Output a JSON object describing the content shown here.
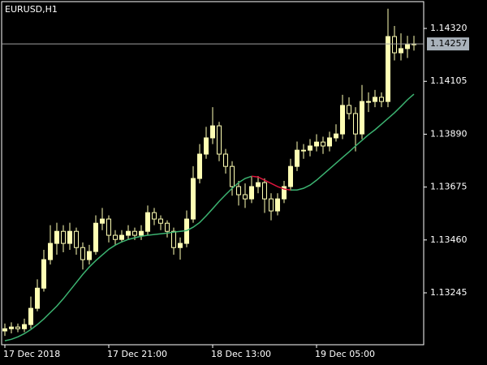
{
  "chart_data": {
    "type": "candlestick",
    "title": "EURUSD,H1",
    "categories": [
      "17 Dec 2018",
      null,
      null,
      null,
      null,
      null,
      null,
      null,
      null,
      null,
      null,
      null,
      null,
      null,
      null,
      null,
      "17 Dec 21:00",
      null,
      null,
      null,
      null,
      null,
      null,
      null,
      null,
      null,
      null,
      null,
      null,
      null,
      null,
      null,
      "18 Dec 13:00",
      null,
      null,
      null,
      null,
      null,
      null,
      null,
      null,
      null,
      null,
      null,
      null,
      null,
      null,
      null,
      "19 Dec 05:00",
      null,
      null,
      null,
      null,
      null,
      null,
      null,
      null,
      null,
      null,
      null,
      null,
      null,
      null,
      null
    ],
    "ohlc": [
      [
        1.1309,
        1.1312,
        1.1307,
        1.13099
      ],
      [
        1.13099,
        1.13125,
        1.1308,
        1.13106
      ],
      [
        1.13106,
        1.1312,
        1.13085,
        1.13099
      ],
      [
        1.13099,
        1.1314,
        1.13085,
        1.13116
      ],
      [
        1.13116,
        1.1323,
        1.131,
        1.13182
      ],
      [
        1.13182,
        1.133,
        1.1317,
        1.13264
      ],
      [
        1.13264,
        1.1342,
        1.1325,
        1.1338
      ],
      [
        1.1338,
        1.1352,
        1.1336,
        1.13446
      ],
      [
        1.13446,
        1.1353,
        1.134,
        1.13495
      ],
      [
        1.13495,
        1.1352,
        1.1341,
        1.13446
      ],
      [
        1.13446,
        1.1353,
        1.1342,
        1.13495
      ],
      [
        1.13495,
        1.1351,
        1.134,
        1.13429
      ],
      [
        1.13429,
        1.1345,
        1.1334,
        1.1338
      ],
      [
        1.1338,
        1.1344,
        1.1336,
        1.13413
      ],
      [
        1.13413,
        1.1356,
        1.134,
        1.13528
      ],
      [
        1.13528,
        1.1359,
        1.135,
        1.13545
      ],
      [
        1.13545,
        1.1356,
        1.1345,
        1.13479
      ],
      [
        1.13479,
        1.135,
        1.1344,
        1.13462
      ],
      [
        1.13462,
        1.135,
        1.1345,
        1.13479
      ],
      [
        1.13479,
        1.1352,
        1.1346,
        1.13495
      ],
      [
        1.13495,
        1.1351,
        1.1346,
        1.13479
      ],
      [
        1.13479,
        1.1352,
        1.1346,
        1.13495
      ],
      [
        1.13495,
        1.136,
        1.1348,
        1.13571
      ],
      [
        1.13571,
        1.1359,
        1.1352,
        1.13545
      ],
      [
        1.13545,
        1.1356,
        1.135,
        1.13528
      ],
      [
        1.13528,
        1.1354,
        1.1347,
        1.13495
      ],
      [
        1.13495,
        1.1351,
        1.134,
        1.13429
      ],
      [
        1.13429,
        1.1347,
        1.1338,
        1.13446
      ],
      [
        1.13446,
        1.1358,
        1.1343,
        1.13545
      ],
      [
        1.13545,
        1.1376,
        1.1353,
        1.1371
      ],
      [
        1.1371,
        1.1385,
        1.1369,
        1.13809
      ],
      [
        1.13809,
        1.1392,
        1.1379,
        1.13875
      ],
      [
        1.13875,
        1.14,
        1.1385,
        1.13924
      ],
      [
        1.13924,
        1.1394,
        1.1378,
        1.13809
      ],
      [
        1.13809,
        1.1383,
        1.1373,
        1.13759
      ],
      [
        1.13759,
        1.1378,
        1.1364,
        1.13677
      ],
      [
        1.13677,
        1.137,
        1.136,
        1.13644
      ],
      [
        1.13644,
        1.1369,
        1.1359,
        1.13627
      ],
      [
        1.13627,
        1.1372,
        1.1361,
        1.13677
      ],
      [
        1.13677,
        1.1372,
        1.1365,
        1.13693
      ],
      [
        1.13693,
        1.1371,
        1.1357,
        1.13627
      ],
      [
        1.13627,
        1.1365,
        1.1354,
        1.13578
      ],
      [
        1.13578,
        1.1365,
        1.1356,
        1.13627
      ],
      [
        1.13627,
        1.137,
        1.1361,
        1.13677
      ],
      [
        1.13677,
        1.1379,
        1.1366,
        1.13759
      ],
      [
        1.13759,
        1.1386,
        1.1374,
        1.13825
      ],
      [
        1.13825,
        1.1385,
        1.1379,
        1.13825
      ],
      [
        1.13825,
        1.1387,
        1.138,
        1.13842
      ],
      [
        1.13842,
        1.1389,
        1.1382,
        1.13858
      ],
      [
        1.13858,
        1.1388,
        1.1381,
        1.13842
      ],
      [
        1.13842,
        1.139,
        1.1382,
        1.13875
      ],
      [
        1.13875,
        1.1393,
        1.1386,
        1.13891
      ],
      [
        1.13891,
        1.1405,
        1.1387,
        1.14007
      ],
      [
        1.14007,
        1.1404,
        1.1395,
        1.13974
      ],
      [
        1.13974,
        1.14,
        1.1382,
        1.13891
      ],
      [
        1.13891,
        1.1409,
        1.1387,
        1.14023
      ],
      [
        1.14023,
        1.1406,
        1.1398,
        1.14023
      ],
      [
        1.14023,
        1.1407,
        1.14,
        1.1404
      ],
      [
        1.1404,
        1.1406,
        1.14,
        1.14023
      ],
      [
        1.14023,
        1.144,
        1.14,
        1.14287
      ],
      [
        1.14287,
        1.1433,
        1.1419,
        1.14221
      ],
      [
        1.14221,
        1.143,
        1.1419,
        1.14238
      ],
      [
        1.14238,
        1.1429,
        1.142,
        1.14254
      ],
      [
        1.14254,
        1.1429,
        1.1423,
        1.14257
      ]
    ],
    "up_color": "#ffffb4",
    "down_color": "#000000",
    "wick_color": "#ffffb4",
    "ma": {
      "values": [
        1.1305,
        1.13056,
        1.13066,
        1.13079,
        1.13096,
        1.13116,
        1.13139,
        1.13165,
        1.13191,
        1.13221,
        1.13254,
        1.13287,
        1.1332,
        1.1335,
        1.13376,
        1.13399,
        1.13422,
        1.13439,
        1.13452,
        1.13462,
        1.13469,
        1.13475,
        1.13479,
        1.13482,
        1.13485,
        1.13488,
        1.13492,
        1.13495,
        1.13498,
        1.13512,
        1.13531,
        1.13558,
        1.13587,
        1.13617,
        1.13644,
        1.1367,
        1.13693,
        1.1371,
        1.13719,
        1.13716,
        1.13703,
        1.1369,
        1.13677,
        1.13667,
        1.13663,
        1.13663,
        1.1367,
        1.13683,
        1.13703,
        1.13726,
        1.13749,
        1.13772,
        1.13795,
        1.13818,
        1.13842,
        1.13865,
        1.13888,
        1.13908,
        1.13931,
        1.13954,
        1.13977,
        1.14003,
        1.1403,
        1.14053
      ],
      "up_color": "#3cb371",
      "down_color": "#dc143c"
    },
    "current_price": 1.14257,
    "ylim": [
      1.13034,
      1.14429
    ],
    "yticks": [
      {
        "value": 1.1432,
        "label": "1.14320"
      },
      1.14105,
      {
        "value": 1.1389,
        "label": "1.13890"
      },
      1.13675,
      {
        "value": 1.1346,
        "label": "1.13460"
      },
      1.13245
    ]
  }
}
